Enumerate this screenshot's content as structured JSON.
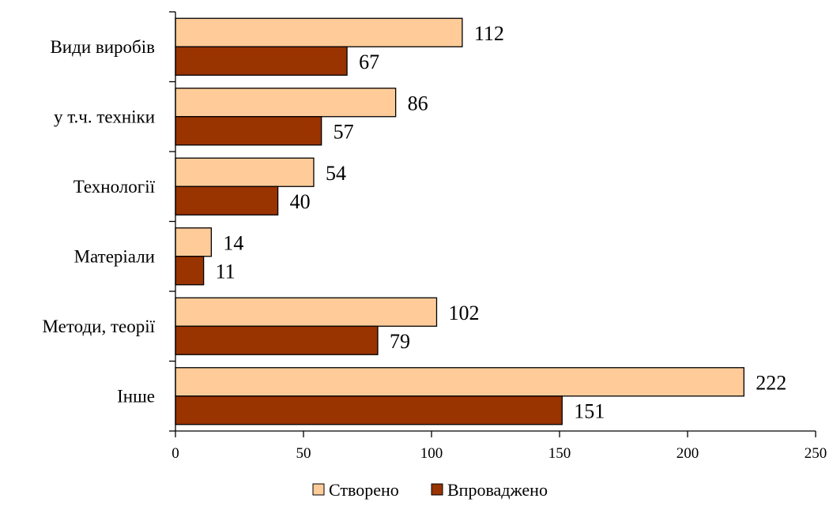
{
  "chart_data": {
    "type": "bar",
    "orientation": "horizontal",
    "categories": [
      "Види виробів",
      "у т.ч. техніки",
      "Технології",
      "Матеріали",
      "Методи, теорії",
      "Інше"
    ],
    "series": [
      {
        "name": "Створено",
        "values": [
          112,
          86,
          54,
          14,
          102,
          222
        ],
        "color": "#FFCC99"
      },
      {
        "name": "Впроваджено",
        "values": [
          67,
          57,
          40,
          11,
          79,
          151
        ],
        "color": "#993300"
      }
    ],
    "xlim": [
      0,
      250
    ],
    "xticks": [
      0,
      50,
      100,
      150,
      200,
      250
    ],
    "grid": false,
    "legend": "bottom"
  }
}
